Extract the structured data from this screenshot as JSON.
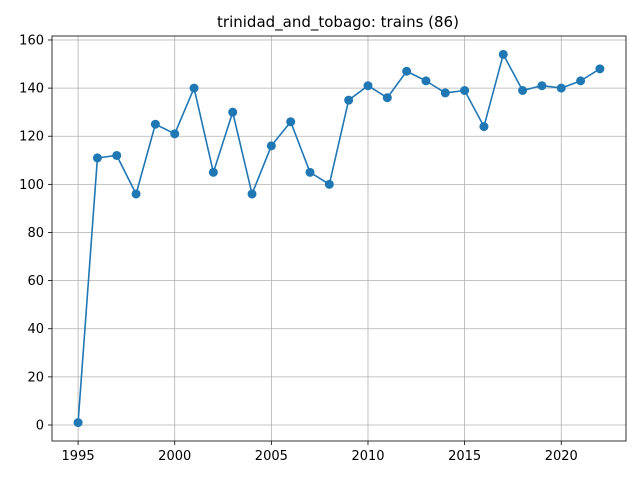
{
  "chart_data": {
    "type": "line",
    "title": "trinidad_and_tobago: trains (86)",
    "xlabel": "",
    "ylabel": "",
    "x": [
      1995,
      1996,
      1997,
      1998,
      1999,
      2000,
      2001,
      2002,
      2003,
      2004,
      2005,
      2006,
      2007,
      2008,
      2009,
      2010,
      2011,
      2012,
      2013,
      2014,
      2015,
      2016,
      2017,
      2018,
      2019,
      2020,
      2021,
      2022
    ],
    "series": [
      {
        "values": [
          1,
          111,
          112,
          96,
          125,
          121,
          140,
          105,
          130,
          96,
          116,
          126,
          105,
          100,
          135,
          141,
          136,
          147,
          143,
          138,
          139,
          124,
          154,
          139,
          141,
          140,
          143,
          148
        ],
        "color": "#1f77b4",
        "marker": "circle"
      }
    ],
    "xlim": [
      1993.65,
      2023.35
    ],
    "ylim": [
      -6.65,
      161.65
    ],
    "xticks": [
      1995,
      2000,
      2005,
      2010,
      2015,
      2020
    ],
    "xtick_labels": [
      "1995",
      "2000",
      "2005",
      "2010",
      "2015",
      "2020"
    ],
    "yticks": [
      0,
      20,
      40,
      60,
      80,
      100,
      120,
      140,
      160
    ],
    "ytick_labels": [
      "0",
      "20",
      "40",
      "60",
      "80",
      "100",
      "120",
      "140",
      "160"
    ],
    "grid": true,
    "grid_color": "#b0b0b0",
    "axis_color": "#000000"
  }
}
